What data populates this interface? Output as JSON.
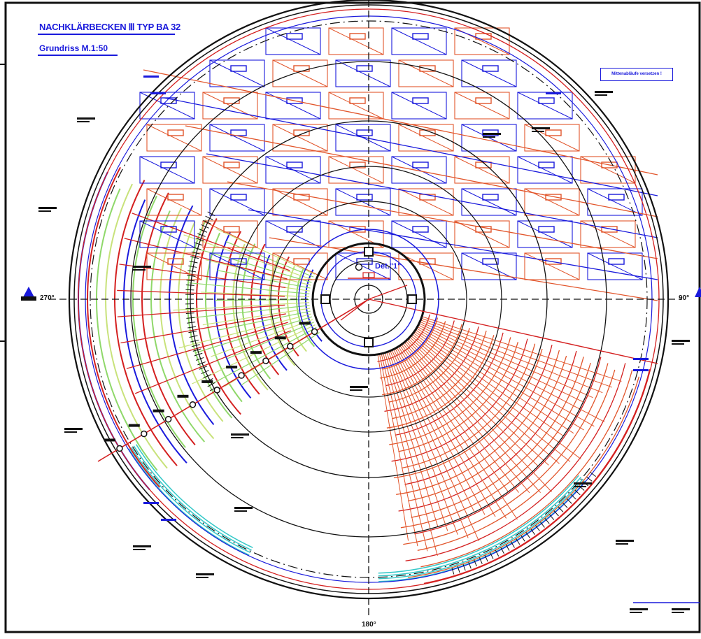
{
  "header": {
    "title": "NACHKLÄRBECKEN Ⅲ TYP BA 32",
    "subtitle": "Grundriss  M.1:50"
  },
  "note": {
    "text": "Mittenabläufe versetzen !"
  },
  "angles": {
    "a270": "270°",
    "a90": "90°",
    "a180": "180°"
  },
  "center_detail": {
    "label": "Det.\"1\""
  },
  "colors": {
    "blue": "#1a1adc",
    "red": "#d42020",
    "orange_red": "#e2562c",
    "green": "#8fd86a",
    "yellow_green": "#c8e27a",
    "cyan": "#35c8c8",
    "black": "#111111"
  },
  "icons": [
    "north-marker-icon",
    "detail-marker-icon"
  ]
}
